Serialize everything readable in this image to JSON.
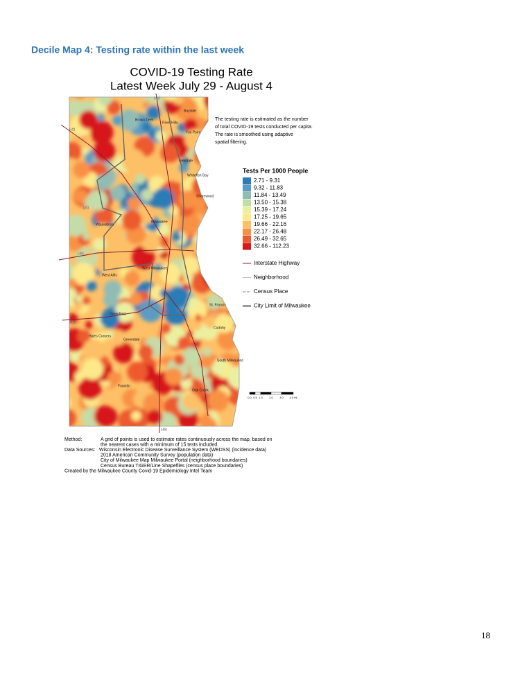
{
  "header": {
    "title": "Decile Map 4: Testing rate within the last week"
  },
  "map": {
    "title": [
      "COVID-19 Testing Rate",
      "Latest Week July 29 - August 4"
    ],
    "description": [
      "The testing rate is estimated as the number",
      "of total COVID-19 tests conducted per capita.",
      "The rate is smoothed using adaptive",
      "spatial filtering."
    ],
    "legend": {
      "title": "Tests Per 1000 People",
      "items": [
        {
          "label": "2.71 - 9.31",
          "color": "#2c7bb6"
        },
        {
          "label": "9.32 - 11.83",
          "color": "#5b9bc2"
        },
        {
          "label": "11.84 - 13.49",
          "color": "#8fbcb5"
        },
        {
          "label": "13.50 - 15.38",
          "color": "#c4dca7"
        },
        {
          "label": "15.39 - 17.24",
          "color": "#ebf0a0"
        },
        {
          "label": "17.25 - 19.65",
          "color": "#fde98a"
        },
        {
          "label": "19.66 - 22.16",
          "color": "#fdc066"
        },
        {
          "label": "22.17 - 26.48",
          "color": "#f99145"
        },
        {
          "label": "26.49 - 32.65",
          "color": "#ec5a2f"
        },
        {
          "label": "32.66 - 112.23",
          "color": "#d7191c"
        }
      ],
      "lines": [
        {
          "label": "Interstate Highway",
          "color": "#8b1a2a",
          "style": "solid"
        },
        {
          "label": "Neighborhood",
          "color": "#bbbbbb",
          "style": "solid"
        },
        {
          "label": "Census Place",
          "color": "#777777",
          "style": "dashdot"
        },
        {
          "label": "City Limit of Milwaukee",
          "color": "#666666",
          "style": "thick"
        }
      ]
    },
    "places": [
      "Bayside",
      "Brown Deer",
      "River Hills",
      "Fox Point",
      "Glendale",
      "Whitefish Bay",
      "Shorewood",
      "Wauwatosa",
      "Milwaukee",
      "West Milwaukee",
      "West Allis",
      "St. Francis",
      "Greenfield",
      "Cudahy",
      "Hales Corners",
      "Greendale",
      "South Milwaukee",
      "Franklin",
      "Oak Creek"
    ],
    "highways": [
      "I-43",
      "I-41",
      "I-41",
      "I-94",
      "I-43",
      "I-94"
    ],
    "scale": [
      "0.0",
      "0.5",
      "1.0",
      "2.0",
      "3.0",
      "4.0 mi"
    ]
  },
  "notes": {
    "method": {
      "label": "Method:",
      "lines": [
        "A grid of points is used to estimate rates continuously across the map, based on",
        "the nearest cases with a minimum of 15 tests included."
      ]
    },
    "sources": {
      "label": "Data Sources:",
      "lines": [
        "Wisconsin Electronic Disease Surveillance System (WEDSS) (incidence data)",
        "2018 American Community Survey (population data)",
        "City of Milwaukee Map Milwaukee Portal (neighborhood boundaries)",
        "Census Bureau TIGER/Line Shapefiles (census place boundaries)"
      ]
    },
    "credit": "Created by the Milwaukee County Covid-19 Epidemiology Intel Team"
  },
  "footer": {
    "page_number": "18"
  }
}
